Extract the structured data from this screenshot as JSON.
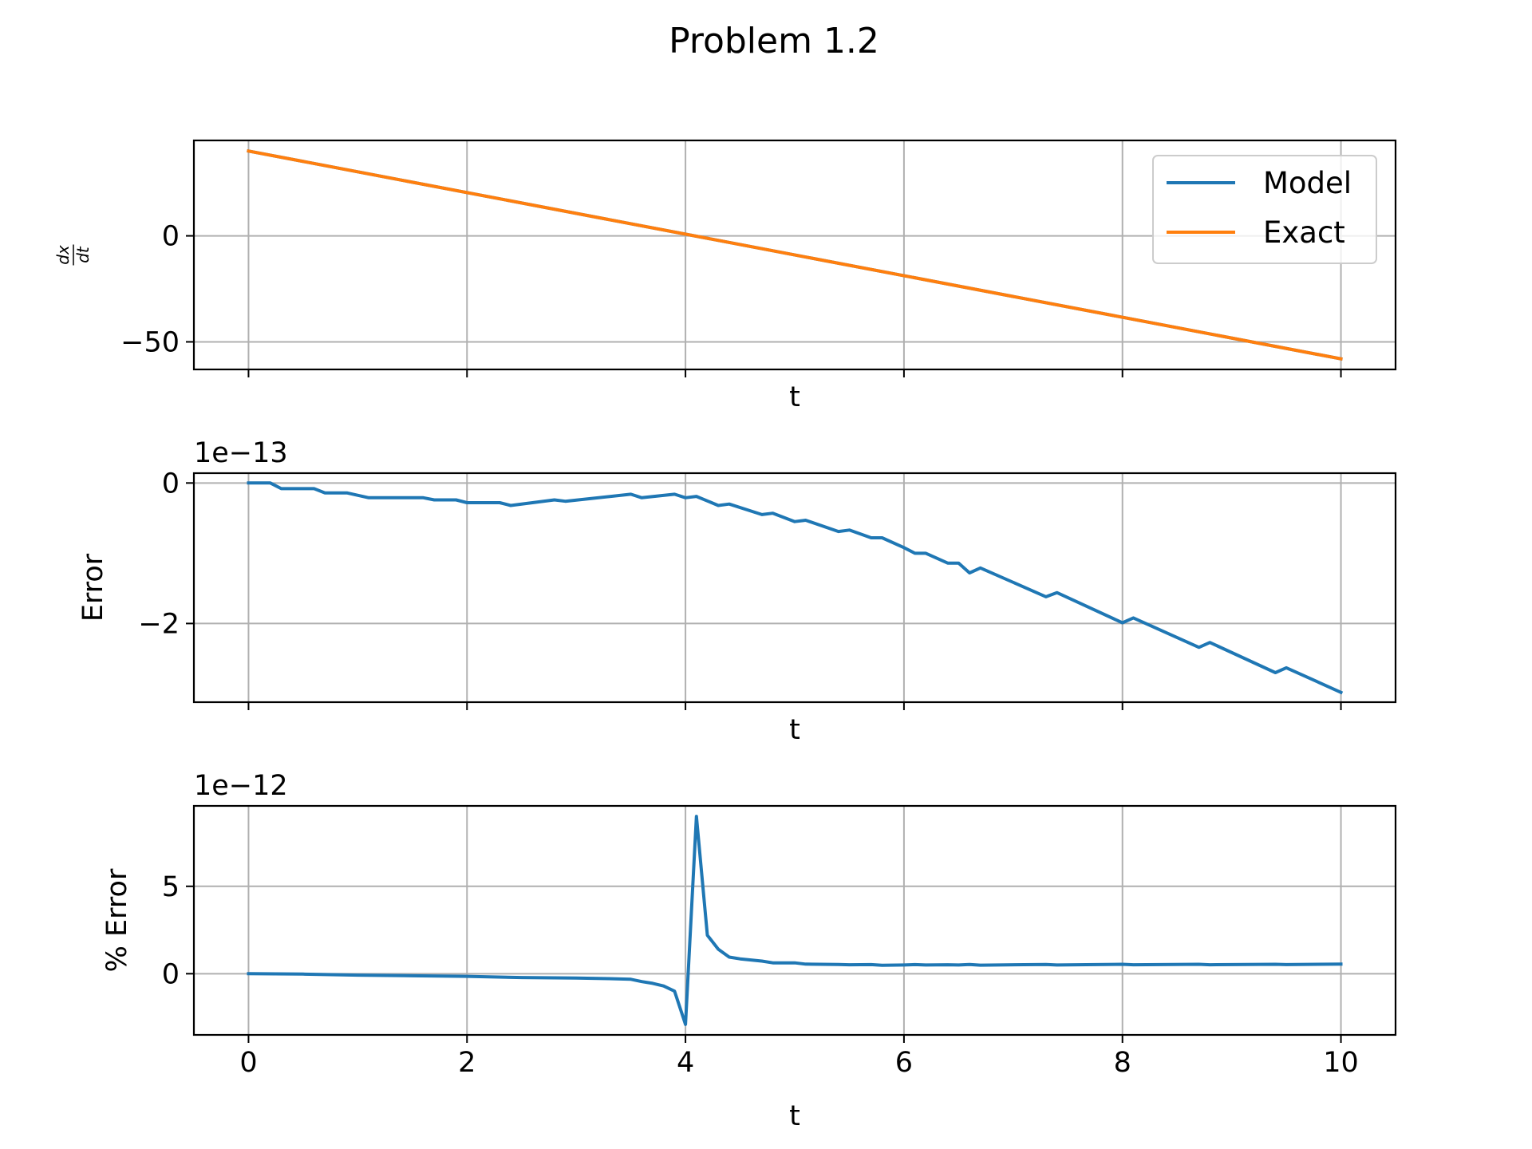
{
  "figure": {
    "title": "Problem 1.2"
  },
  "colors": {
    "model": "#1f77b4",
    "exact": "#ff7f0e",
    "grid": "#b0b0b0",
    "axes": "#000000"
  },
  "chart_data": [
    {
      "type": "line",
      "title": "",
      "xlabel": "t",
      "ylabel": "dx/dt",
      "ylabel_num": "dx",
      "ylabel_den": "dt",
      "xlim": [
        -0.5,
        10.5
      ],
      "ylim": [
        -63,
        45
      ],
      "xticks": [
        0,
        2,
        4,
        6,
        8,
        10
      ],
      "xtick_labels_visible": false,
      "yticks": [
        0,
        -50
      ],
      "ytick_labels": [
        "0",
        "−50"
      ],
      "grid": true,
      "legend": {
        "placement": "upper right",
        "entries": [
          "Model",
          "Exact"
        ]
      },
      "series": [
        {
          "name": "Model",
          "color_key": "model",
          "x": [
            0,
            10
          ],
          "y": [
            40,
            -58
          ]
        },
        {
          "name": "Exact",
          "color_key": "exact",
          "x": [
            0,
            10
          ],
          "y": [
            40,
            -58
          ]
        }
      ]
    },
    {
      "type": "line",
      "title": "",
      "xlabel": "t",
      "ylabel": "Error",
      "offset_text": "1e−13",
      "xlim": [
        -0.5,
        10.5
      ],
      "ylim": [
        -3.12,
        0.14
      ],
      "xticks": [
        0,
        2,
        4,
        6,
        8,
        10
      ],
      "xtick_labels_visible": false,
      "yticks": [
        0,
        -2
      ],
      "ytick_labels": [
        "0",
        "−2"
      ],
      "grid": true,
      "series": [
        {
          "name": "",
          "color_key": "model",
          "x": [
            0,
            0.2,
            0.3,
            0.6,
            0.7,
            0.9,
            1.1,
            1.6,
            1.7,
            1.9,
            2.0,
            2.3,
            2.4,
            2.8,
            2.9,
            3.5,
            3.6,
            3.9,
            4.0,
            4.1,
            4.3,
            4.4,
            4.7,
            4.8,
            5.0,
            5.1,
            5.4,
            5.5,
            5.7,
            5.8,
            6.0,
            6.1,
            6.2,
            6.4,
            6.5,
            6.6,
            6.7,
            7.3,
            7.4,
            8.0,
            8.1,
            8.7,
            8.8,
            9.4,
            9.5,
            10.0
          ],
          "y": [
            0,
            0,
            -0.08,
            -0.08,
            -0.14,
            -0.14,
            -0.21,
            -0.21,
            -0.24,
            -0.24,
            -0.28,
            -0.28,
            -0.32,
            -0.24,
            -0.26,
            -0.16,
            -0.21,
            -0.16,
            -0.21,
            -0.19,
            -0.32,
            -0.3,
            -0.45,
            -0.43,
            -0.55,
            -0.53,
            -0.69,
            -0.67,
            -0.78,
            -0.78,
            -0.92,
            -1.0,
            -1.0,
            -1.14,
            -1.14,
            -1.28,
            -1.21,
            -1.62,
            -1.56,
            -1.99,
            -1.92,
            -2.34,
            -2.27,
            -2.7,
            -2.63,
            -2.98
          ]
        }
      ]
    },
    {
      "type": "line",
      "title": "",
      "xlabel": "t",
      "ylabel": "% Error",
      "offset_text": "1e−12",
      "xlim": [
        -0.5,
        10.5
      ],
      "ylim": [
        -3.5,
        9.6
      ],
      "xticks": [
        0,
        2,
        4,
        6,
        8,
        10
      ],
      "xtick_labels": [
        "0",
        "2",
        "4",
        "6",
        "8",
        "10"
      ],
      "xtick_labels_visible": true,
      "yticks": [
        5,
        0
      ],
      "ytick_labels": [
        "5",
        "0"
      ],
      "grid": true,
      "series": [
        {
          "name": "",
          "color_key": "model",
          "x": [
            0,
            0.5,
            1.0,
            1.5,
            2.0,
            2.5,
            3.0,
            3.3,
            3.5,
            3.6,
            3.7,
            3.8,
            3.9,
            4.0,
            4.1,
            4.2,
            4.3,
            4.4,
            4.5,
            4.7,
            4.8,
            5.0,
            5.1,
            5.4,
            5.5,
            5.7,
            5.8,
            6.0,
            6.1,
            6.2,
            6.4,
            6.5,
            6.6,
            6.7,
            7.3,
            7.4,
            8.0,
            8.1,
            8.7,
            8.8,
            9.4,
            9.5,
            10.0
          ],
          "y": [
            0,
            -0.02,
            -0.08,
            -0.12,
            -0.15,
            -0.22,
            -0.25,
            -0.28,
            -0.32,
            -0.45,
            -0.55,
            -0.7,
            -1.0,
            -2.9,
            9.0,
            2.2,
            1.4,
            0.95,
            0.85,
            0.72,
            0.62,
            0.62,
            0.55,
            0.53,
            0.51,
            0.52,
            0.48,
            0.5,
            0.52,
            0.5,
            0.51,
            0.5,
            0.53,
            0.49,
            0.53,
            0.5,
            0.54,
            0.51,
            0.54,
            0.51,
            0.54,
            0.52,
            0.55
          ]
        }
      ]
    }
  ]
}
